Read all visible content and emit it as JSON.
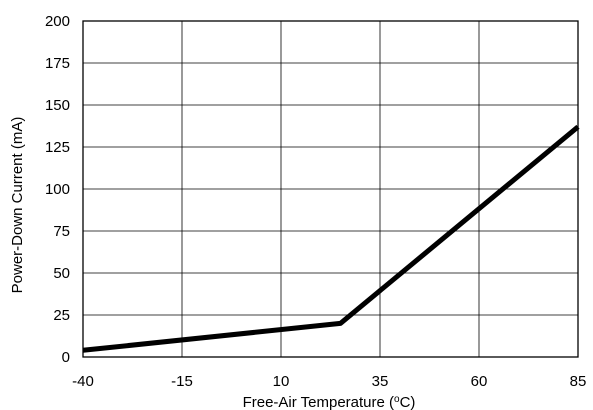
{
  "chart_data": {
    "type": "line",
    "xlabel": "Free-Air Temperature (",
    "xlabel_sup": "o",
    "xlabel_unit": "C)",
    "ylabel": "Power-Down Current (mA)",
    "xlim": [
      -40,
      85
    ],
    "ylim": [
      0,
      200
    ],
    "x_ticks": [
      -40,
      -15,
      10,
      35,
      60,
      85
    ],
    "y_ticks": [
      0,
      25,
      50,
      75,
      100,
      125,
      150,
      175,
      200
    ],
    "x_tick_labels": [
      "-40",
      "-15",
      "10",
      "35",
      "60",
      "85"
    ],
    "y_tick_labels": [
      "0",
      "25",
      "50",
      "75",
      "100",
      "125",
      "150",
      "175",
      "200"
    ],
    "grid": true,
    "series": [
      {
        "x": [
          -40,
          25,
          85
        ],
        "y": [
          4,
          20,
          137
        ]
      }
    ]
  }
}
